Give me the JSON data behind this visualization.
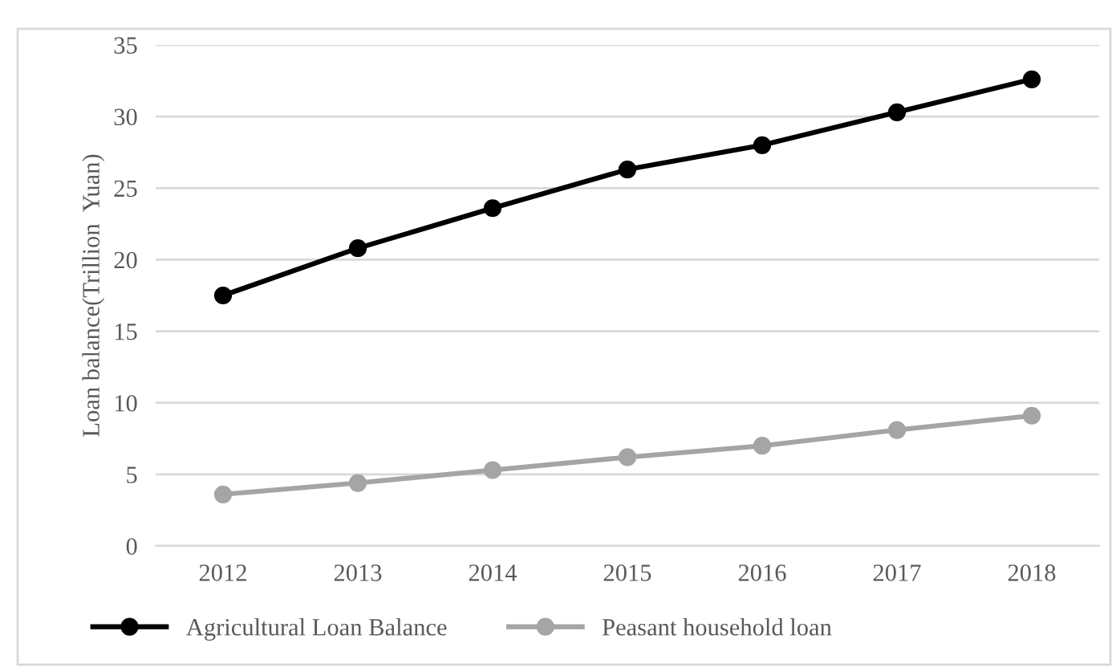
{
  "chart_data": {
    "type": "line",
    "ylabel": "Loan balance(Trillion  Yuan)",
    "categories": [
      "2012",
      "2013",
      "2014",
      "2015",
      "2016",
      "2017",
      "2018"
    ],
    "series": [
      {
        "name": "Agricultural Loan Balance",
        "color": "#000000",
        "values": [
          17.5,
          20.8,
          23.6,
          26.3,
          28.0,
          30.3,
          32.6
        ]
      },
      {
        "name": "Peasant household loan",
        "color": "#a5a5a5",
        "values": [
          3.6,
          4.4,
          5.3,
          6.2,
          7.0,
          8.1,
          9.1
        ]
      }
    ],
    "ylim": [
      0,
      35
    ],
    "yticks": [
      0,
      5,
      10,
      15,
      20,
      25,
      30,
      35
    ],
    "grid": "y",
    "legend": "bottom",
    "marker": "circle",
    "line_style": "solid"
  }
}
